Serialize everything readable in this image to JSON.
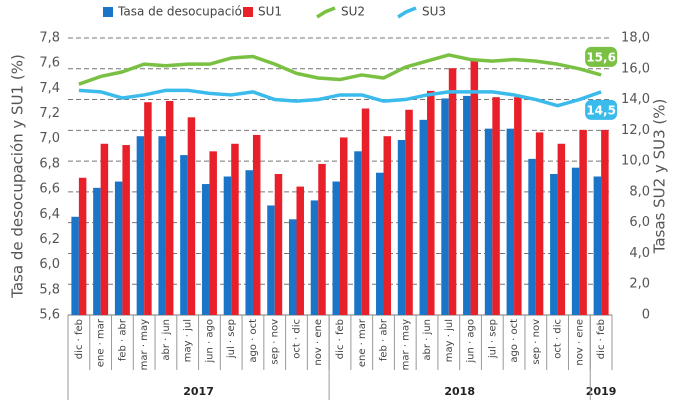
{
  "chart_data": {
    "type": "bar_line",
    "categories": [
      "dic · feb",
      "ene · mar",
      "feb · abr",
      "mar · may",
      "abr · jun",
      "may · jul",
      "jun · ago",
      "jul · sep",
      "ago · oct",
      "sep · nov",
      "oct · dic",
      "nov · ene",
      "dic · feb",
      "ene · mar",
      "feb · abr",
      "mar · may",
      "abr · jun",
      "may · jul",
      "jun · ago",
      "jul · sep",
      "ago · oct",
      "sep · nov",
      "oct · dic",
      "nov · ene",
      "dic · feb"
    ],
    "years": [
      "2017",
      "2018",
      "2019"
    ],
    "ylabel": "Tasa de desocupación y SU1 (%)",
    "y2label": "Tasas SU2 y SU3 (%)",
    "ylim": [
      5.6,
      7.8
    ],
    "yticks": [
      {
        "value": 5.6,
        "label": "5,6"
      },
      {
        "value": 5.8,
        "label": "5,8"
      },
      {
        "value": 6.0,
        "label": "6,0"
      },
      {
        "value": 6.2,
        "label": "6,2"
      },
      {
        "value": 6.4,
        "label": "6,4"
      },
      {
        "value": 6.6,
        "label": "6,6"
      },
      {
        "value": 6.8,
        "label": "6,8"
      },
      {
        "value": 7.0,
        "label": "7,0"
      },
      {
        "value": 7.2,
        "label": "7,2"
      },
      {
        "value": 7.4,
        "label": "7,4"
      },
      {
        "value": 7.6,
        "label": "7,6"
      },
      {
        "value": 7.8,
        "label": "7,8"
      }
    ],
    "y2lim": [
      0,
      18
    ],
    "y2ticks": [
      0,
      {
        "value": 2,
        "label": "2,0"
      },
      {
        "value": 4,
        "label": "4,0"
      },
      {
        "value": 6,
        "label": "6,0"
      },
      {
        "value": 8,
        "label": "8,0"
      },
      {
        "value": 10,
        "label": "10,0"
      },
      {
        "value": 12,
        "label": "12,0"
      },
      {
        "value": 14,
        "label": "14,0"
      },
      {
        "value": 16,
        "label": "16,0"
      },
      {
        "value": 18,
        "label": "18,0"
      }
    ],
    "grid": true,
    "series": [
      {
        "name": "Tasa de desocupación",
        "color": "#1a75c8",
        "kind": "bar",
        "values": [
          6.38,
          6.61,
          6.66,
          7.02,
          7.02,
          6.87,
          6.64,
          6.7,
          6.75,
          6.47,
          6.36,
          6.51,
          6.66,
          6.9,
          6.73,
          6.99,
          7.15,
          7.32,
          7.34,
          7.08,
          7.08,
          6.84,
          6.72,
          6.77,
          6.7
        ]
      },
      {
        "name": "SU1",
        "color": "#e8202a",
        "kind": "bar",
        "values": [
          6.69,
          6.96,
          6.95,
          7.29,
          7.3,
          7.17,
          6.9,
          6.96,
          7.03,
          6.72,
          6.62,
          6.8,
          7.01,
          7.24,
          7.02,
          7.23,
          7.38,
          7.56,
          7.62,
          7.33,
          7.33,
          7.05,
          6.96,
          7.07,
          7.07
        ]
      },
      {
        "name": "SU2",
        "color": "#7ac143",
        "kind": "line",
        "axis": "y2",
        "values": [
          15.0,
          15.5,
          15.8,
          16.3,
          16.2,
          16.3,
          16.3,
          16.7,
          16.8,
          16.3,
          15.7,
          15.4,
          15.3,
          15.6,
          15.4,
          16.1,
          16.5,
          16.9,
          16.6,
          16.5,
          16.6,
          16.5,
          16.3,
          16.0,
          15.6
        ],
        "value_labels": [
          null,
          null,
          null,
          null,
          null,
          null,
          null,
          null,
          null,
          null,
          null,
          null,
          null,
          null,
          null,
          null,
          null,
          null,
          null,
          null,
          null,
          null,
          null,
          null,
          "15,6"
        ]
      },
      {
        "name": "SU3",
        "color": "#3bbbec",
        "kind": "line",
        "axis": "y2",
        "values": [
          14.6,
          14.5,
          14.1,
          14.3,
          14.6,
          14.6,
          14.4,
          14.3,
          14.5,
          14.0,
          13.9,
          14.0,
          14.3,
          14.3,
          13.9,
          14.0,
          14.3,
          14.5,
          14.5,
          14.5,
          14.3,
          14.0,
          13.6,
          14.0,
          14.5
        ],
        "value_labels": [
          null,
          null,
          null,
          null,
          null,
          null,
          null,
          null,
          null,
          null,
          null,
          null,
          null,
          null,
          null,
          null,
          null,
          null,
          null,
          null,
          null,
          null,
          null,
          null,
          "14,5"
        ]
      }
    ]
  }
}
